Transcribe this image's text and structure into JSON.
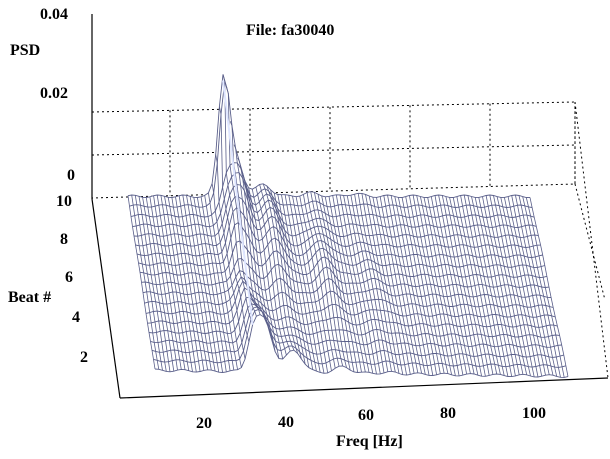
{
  "chart_data": {
    "type": "waterfall",
    "title": "File: fa30040",
    "xlabel": "Freq [Hz]",
    "ylabel": "Beat #",
    "zlabel": "PSD",
    "x_ticks": [
      "20",
      "40",
      "60",
      "80",
      "100"
    ],
    "y_ticks": [
      "2",
      "4",
      "6",
      "8",
      "10"
    ],
    "z_ticks": [
      "0",
      "0.02",
      "0.04"
    ],
    "xlim": [
      0,
      110
    ],
    "ylim": [
      1,
      10
    ],
    "zlim": [
      0,
      0.04
    ],
    "grid": true,
    "surface_color": "#5a5f8a",
    "peaks": [
      {
        "freq": 26,
        "psd": 0.025
      },
      {
        "freq": 29,
        "psd": 0.012
      },
      {
        "freq": 37,
        "psd": 0.007
      },
      {
        "freq": 50,
        "psd": 0.004
      },
      {
        "freq": 62,
        "psd": 0.0015
      }
    ]
  }
}
